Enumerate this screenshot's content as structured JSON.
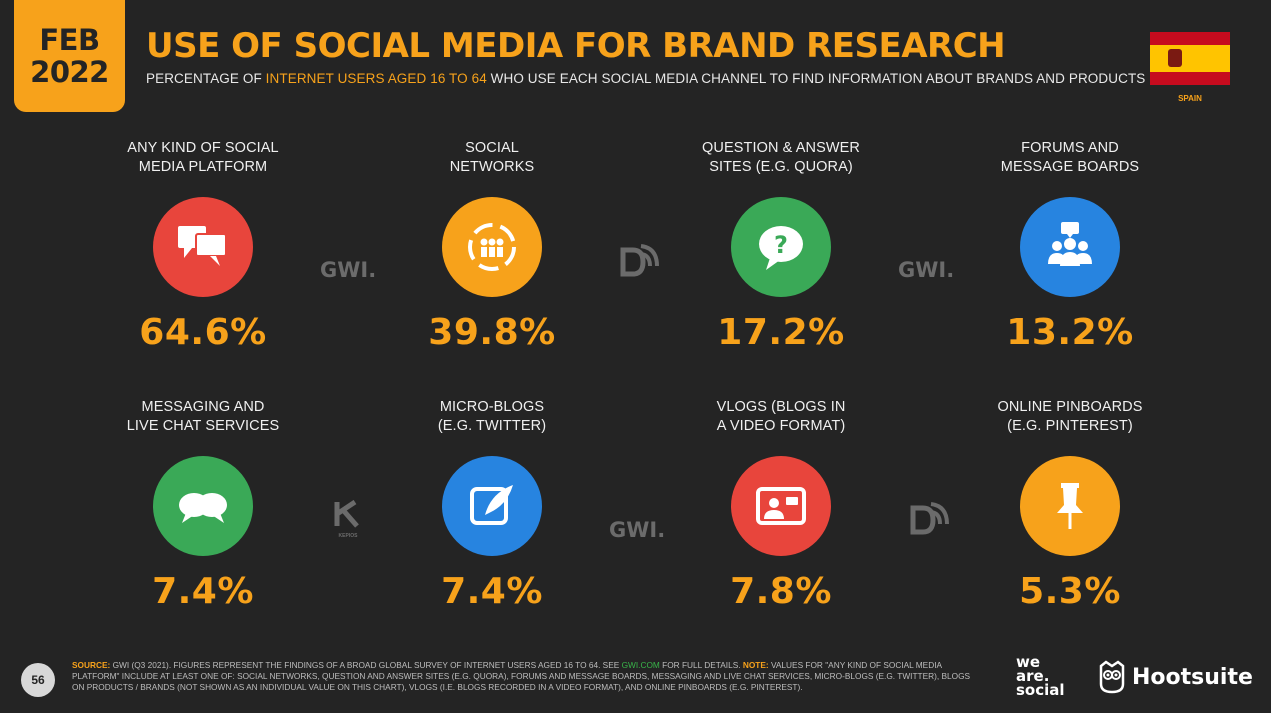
{
  "header": {
    "month": "FEB",
    "year": "2022",
    "title": "USE OF SOCIAL MEDIA FOR BRAND RESEARCH",
    "subtitle_pre": "PERCENTAGE OF ",
    "subtitle_highlight": "INTERNET USERS AGED 16 TO 64",
    "subtitle_post": " WHO USE EACH SOCIAL MEDIA CHANNEL TO FIND INFORMATION ABOUT BRANDS AND PRODUCTS",
    "country": "SPAIN"
  },
  "chart_data": {
    "type": "table",
    "unit": "%",
    "categories": [
      "ANY KIND OF SOCIAL MEDIA PLATFORM",
      "SOCIAL NETWORKS",
      "QUESTION & ANSWER SITES (E.G. QUORA)",
      "FORUMS AND MESSAGE BOARDS",
      "MESSAGING AND LIVE CHAT SERVICES",
      "MICRO-BLOGS (E.G. TWITTER)",
      "VLOGS (BLOGS IN A VIDEO FORMAT)",
      "ONLINE PINBOARDS (E.G. PINTEREST)"
    ],
    "values": [
      64.6,
      39.8,
      17.2,
      13.2,
      7.4,
      7.4,
      7.8,
      5.3
    ]
  },
  "items": [
    {
      "label_1": "ANY KIND OF SOCIAL",
      "label_2": "MEDIA PLATFORM",
      "value": "64.6%",
      "icon": "speech-bubbles-icon",
      "color": "#e8453c"
    },
    {
      "label_1": "SOCIAL",
      "label_2": "NETWORKS",
      "value": "39.8%",
      "icon": "people-network-icon",
      "color": "#f7a21b"
    },
    {
      "label_1": "QUESTION & ANSWER",
      "label_2": "SITES (E.G. QUORA)",
      "value": "17.2%",
      "icon": "question-bubble-icon",
      "color": "#3aa957"
    },
    {
      "label_1": "FORUMS AND",
      "label_2": "MESSAGE BOARDS",
      "value": "13.2%",
      "icon": "group-icon",
      "color": "#2784e0"
    },
    {
      "label_1": "MESSAGING AND",
      "label_2": "LIVE CHAT SERVICES",
      "value": "7.4%",
      "icon": "chat-bubbles-icon",
      "color": "#3aa957"
    },
    {
      "label_1": "MICRO-BLOGS",
      "label_2": "(E.G. TWITTER)",
      "value": "7.4%",
      "icon": "quill-icon",
      "color": "#2784e0"
    },
    {
      "label_1": "VLOGS (BLOGS IN",
      "label_2": "A VIDEO FORMAT)",
      "value": "7.8%",
      "icon": "video-profile-icon",
      "color": "#e8453c"
    },
    {
      "label_1": "ONLINE PINBOARDS",
      "label_2": "(E.G. PINTEREST)",
      "value": "5.3%",
      "icon": "pushpin-icon",
      "color": "#f7a21b"
    }
  ],
  "watermarks": {
    "gwi": "GWI.",
    "kepios": "KEPIOS"
  },
  "footer": {
    "page": "56",
    "source_key": "SOURCE:",
    "source_1": " GWI (Q3 2021). FIGURES REPRESENT THE FINDINGS OF A BROAD GLOBAL SURVEY OF INTERNET USERS AGED 16 TO 64. SEE ",
    "source_link": "GWI.COM",
    "source_2": " FOR FULL DETAILS. ",
    "note_key": "NOTE:",
    "note": " VALUES FOR \"ANY KIND OF SOCIAL MEDIA PLATFORM\" INCLUDE AT LEAST ONE OF: SOCIAL NETWORKS, QUESTION AND ANSWER SITES (E.G. QUORA), FORUMS AND MESSAGE BOARDS, MESSAGING AND LIVE CHAT SERVICES, MICRO-BLOGS (E.G. TWITTER), BLOGS ON PRODUCTS / BRANDS (NOT SHOWN AS AN INDIVIDUAL VALUE ON THIS CHART), VLOGS (I.E. BLOGS RECORDED IN A VIDEO FORMAT), AND ONLINE PINBOARDS (E.G. PINTEREST).",
    "brand_1_line_1": "we",
    "brand_1_line_2": "are.",
    "brand_1_line_3": "social",
    "brand_2": "Hootsuite"
  }
}
